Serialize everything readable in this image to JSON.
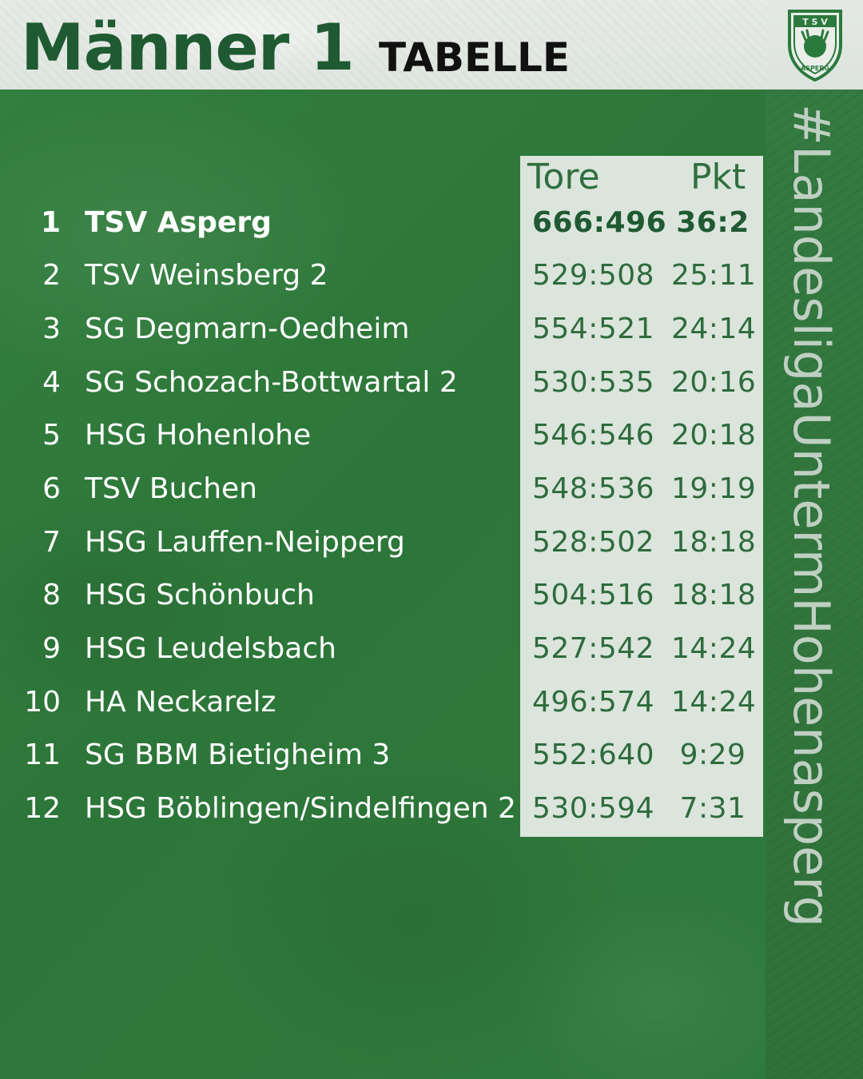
{
  "header": {
    "title": "Männer 1",
    "subtitle": "TABELLE",
    "logo_text_top": "T S V",
    "logo_text_bottom": "ASPERG"
  },
  "table": {
    "columns": {
      "tore": "Tore",
      "pkt": "Pkt"
    },
    "rows": [
      {
        "rank": "1",
        "team": "TSV Asperg",
        "tore": "666:496",
        "pkt": "36:2"
      },
      {
        "rank": "2",
        "team": "TSV Weinsberg 2",
        "tore": "529:508",
        "pkt": "25:11"
      },
      {
        "rank": "3",
        "team": "SG Degmarn-Oedheim",
        "tore": "554:521",
        "pkt": "24:14"
      },
      {
        "rank": "4",
        "team": "SG Schozach-Bottwartal 2",
        "tore": "530:535",
        "pkt": "20:16"
      },
      {
        "rank": "5",
        "team": "HSG Hohenlohe",
        "tore": "546:546",
        "pkt": "20:18"
      },
      {
        "rank": "6",
        "team": "TSV Buchen",
        "tore": "548:536",
        "pkt": "19:19"
      },
      {
        "rank": "7",
        "team": "HSG Lauffen-Neipperg",
        "tore": "528:502",
        "pkt": "18:18"
      },
      {
        "rank": "8",
        "team": "HSG Schönbuch",
        "tore": "504:516",
        "pkt": "18:18"
      },
      {
        "rank": "9",
        "team": "HSG Leudelsbach",
        "tore": "527:542",
        "pkt": "14:24"
      },
      {
        "rank": "10",
        "team": "HA Neckarelz",
        "tore": "496:574",
        "pkt": "14:24"
      },
      {
        "rank": "11",
        "team": "SG BBM Bietigheim 3",
        "tore": "552:640",
        "pkt": "9:29"
      },
      {
        "rank": "12",
        "team": "HSG Böblingen/Sindelfingen 2",
        "tore": "530:594",
        "pkt": "7:31"
      }
    ]
  },
  "sidebar": {
    "hashtag": "#LandesligaUntermHohenasperg"
  },
  "colors": {
    "brand_green": "#2f7a3f",
    "dark_green": "#1f5a32",
    "panel": "#e8eee8"
  }
}
